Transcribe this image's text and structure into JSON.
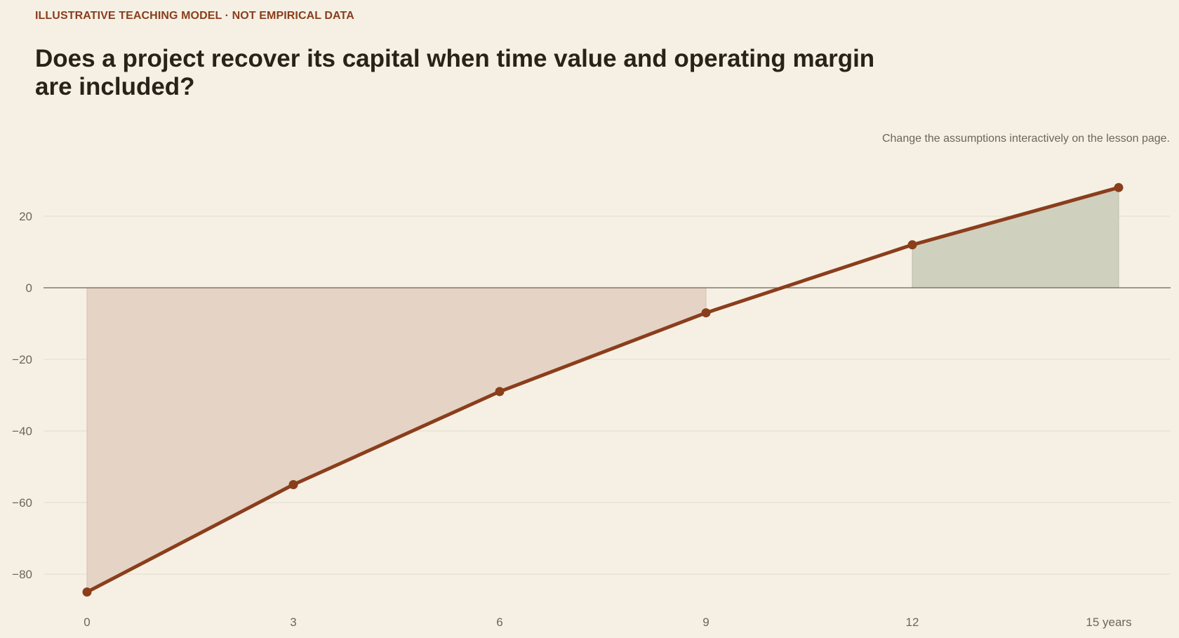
{
  "header": {
    "kicker": "ILLUSTRATIVE TEACHING MODEL · NOT EMPIRICAL DATA",
    "title": "Does a project recover its capital when time value and operating margin are included?",
    "note": "Change the assumptions interactively on the lesson page."
  },
  "chart_data": {
    "type": "line",
    "title": "Does a project recover its capital when time value and operating margin are included?",
    "xlabel": "",
    "ylabel": "",
    "x": [
      0,
      3,
      6,
      9,
      12,
      15
    ],
    "series": [
      {
        "values": [
          -85,
          -55,
          -29,
          -7,
          12,
          28
        ]
      }
    ],
    "xticks": [
      0,
      3,
      6,
      9,
      12,
      15
    ],
    "xtick_labels": [
      "0",
      "3",
      "6",
      "9",
      "12",
      "15 years"
    ],
    "yticks": [
      -80,
      -60,
      -40,
      -20,
      0,
      20
    ],
    "ytick_labels": [
      "−80",
      "−60",
      "−40",
      "−20",
      "0",
      "20"
    ],
    "xlim": [
      0,
      15
    ],
    "ylim": [
      -88,
      30
    ],
    "grid": true,
    "shading": {
      "negative_color": "#e5d3c5",
      "positive_color": "#d0d0bf"
    },
    "colors": {
      "line": "#8a3e1c",
      "grid": "#e3dbcc",
      "zero_line": "#6b6358",
      "background": "#f6f0e4"
    }
  }
}
